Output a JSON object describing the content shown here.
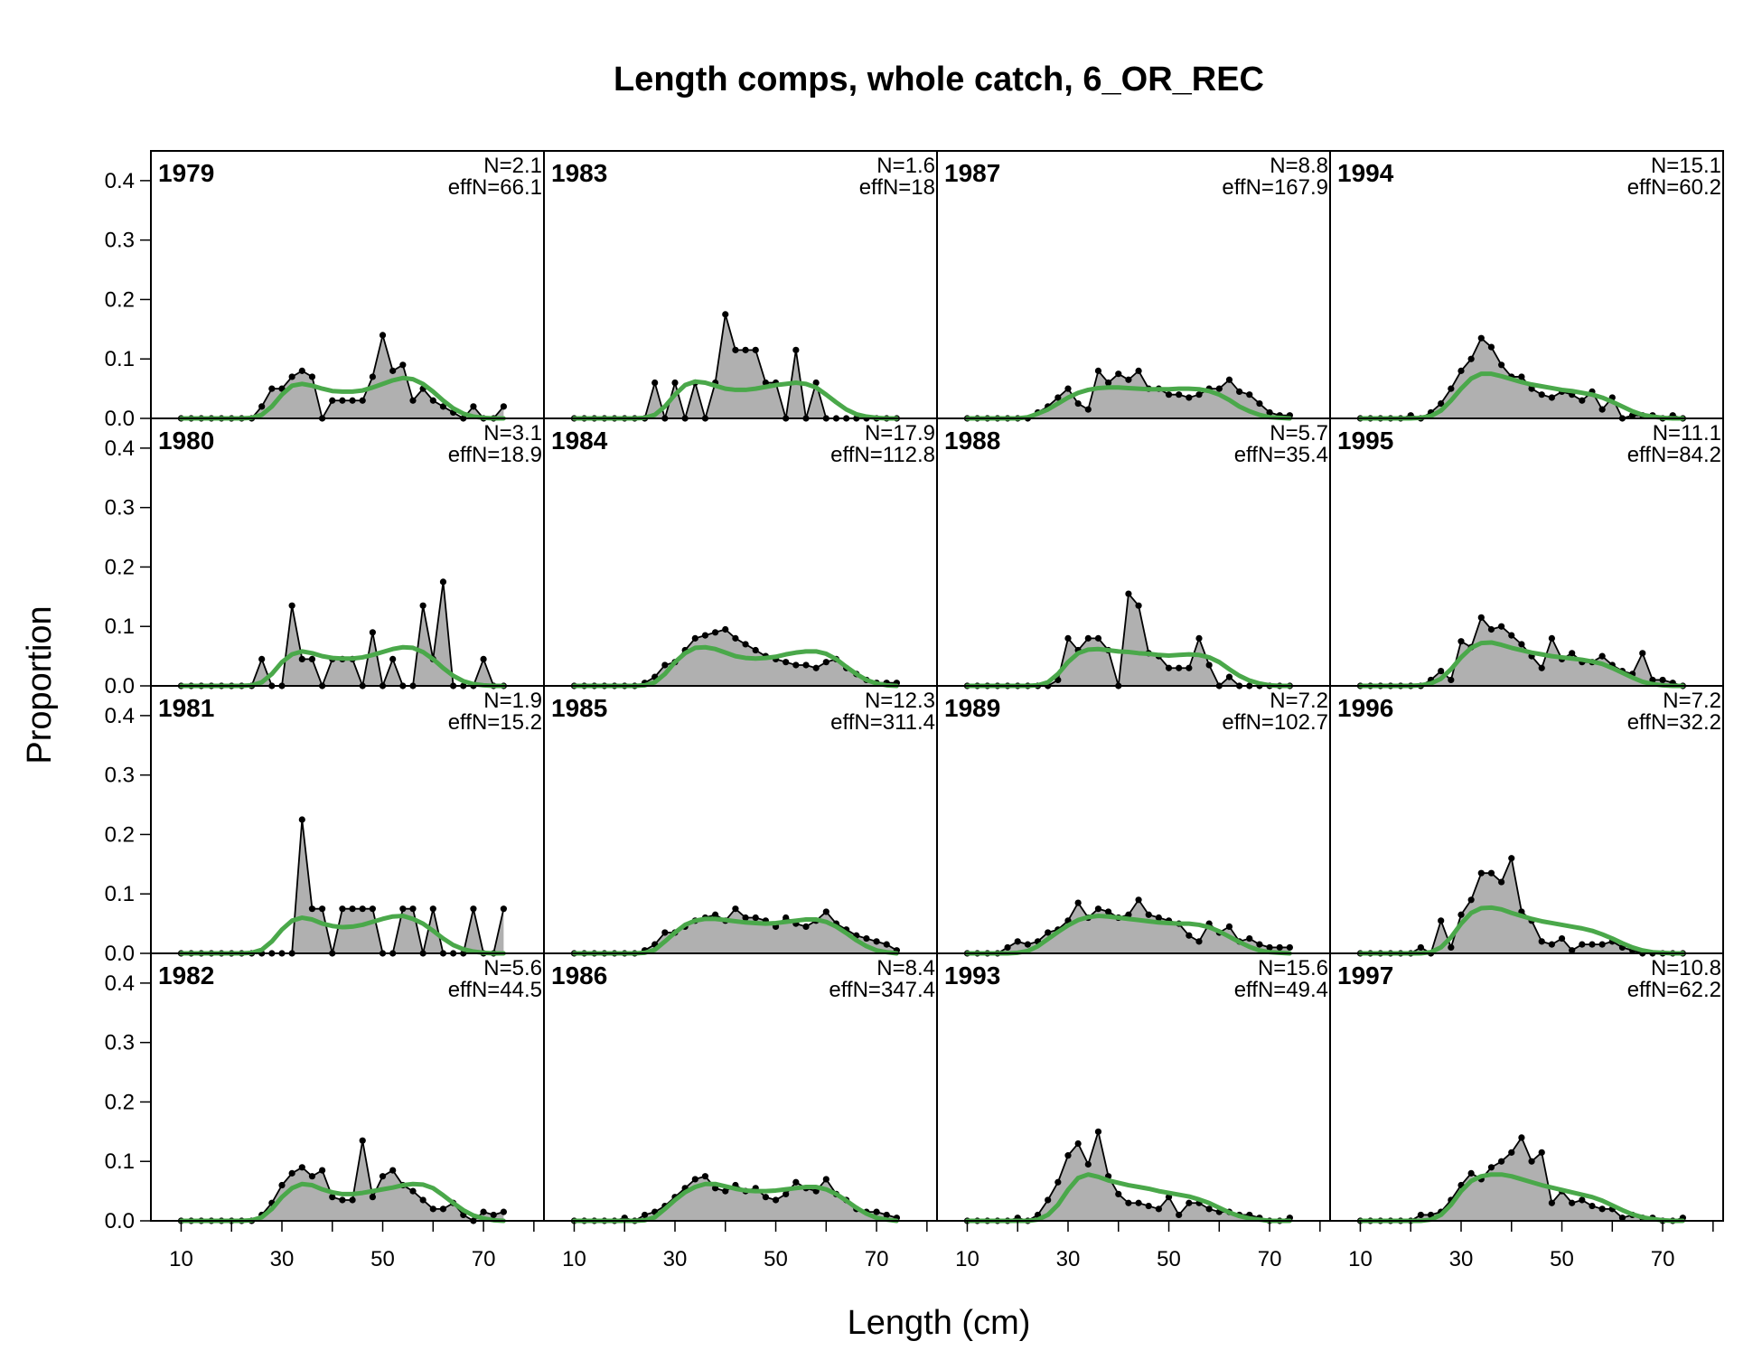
{
  "chart_data": {
    "type": "area",
    "title": "Length comps, whole catch, 6_OR_REC",
    "xlabel": "Length (cm)",
    "ylabel": "Proportion",
    "ylim": [
      0,
      0.45
    ],
    "xlim": [
      4,
      82
    ],
    "x_ticks": [
      10,
      30,
      50,
      70
    ],
    "y_ticks": [
      "0.0",
      "0.1",
      "0.2",
      "0.3",
      "0.4"
    ],
    "layout": "4x4 panel grid, column-major",
    "colors": {
      "observed_fill": "#b0b0b0",
      "observed_line": "#000000",
      "expected_line": "#4aa84a",
      "zero_line": "#c8c8c8"
    },
    "x": [
      10,
      12,
      14,
      16,
      18,
      20,
      22,
      24,
      26,
      28,
      30,
      32,
      34,
      36,
      38,
      40,
      42,
      44,
      46,
      48,
      50,
      52,
      54,
      56,
      58,
      60,
      62,
      64,
      66,
      68,
      70,
      72,
      74
    ],
    "panels": [
      {
        "year": "1979",
        "N": "N=2.1",
        "effN": "effN=66.1",
        "observed": [
          0,
          0,
          0,
          0,
          0,
          0,
          0,
          0,
          0.02,
          0.05,
          0.05,
          0.07,
          0.08,
          0.07,
          0,
          0.03,
          0.03,
          0.03,
          0.03,
          0.07,
          0.14,
          0.08,
          0.09,
          0.03,
          0.05,
          0.03,
          0.02,
          0.01,
          0,
          0.02,
          0,
          0,
          0.02
        ],
        "expected": [
          0,
          0,
          0,
          0,
          0,
          0,
          0,
          0.001,
          0.006,
          0.02,
          0.04,
          0.055,
          0.058,
          0.055,
          0.05,
          0.046,
          0.045,
          0.045,
          0.047,
          0.052,
          0.058,
          0.064,
          0.068,
          0.066,
          0.058,
          0.045,
          0.03,
          0.017,
          0.008,
          0.003,
          0.001,
          0,
          0
        ]
      },
      {
        "year": "1980",
        "N": "N=3.1",
        "effN": "effN=18.9",
        "observed": [
          0,
          0,
          0,
          0,
          0,
          0,
          0,
          0,
          0.045,
          0,
          0,
          0.135,
          0.045,
          0.045,
          0,
          0.045,
          0.045,
          0.045,
          0,
          0.09,
          0,
          0.045,
          0,
          0,
          0.135,
          0.045,
          0.175,
          0,
          0,
          0,
          0.045,
          0,
          0
        ],
        "expected": [
          0,
          0,
          0,
          0,
          0,
          0,
          0,
          0.001,
          0.006,
          0.02,
          0.04,
          0.053,
          0.058,
          0.055,
          0.05,
          0.047,
          0.046,
          0.046,
          0.048,
          0.052,
          0.057,
          0.062,
          0.065,
          0.064,
          0.057,
          0.045,
          0.03,
          0.017,
          0.008,
          0.003,
          0.001,
          0,
          0
        ]
      },
      {
        "year": "1981",
        "N": "N=1.9",
        "effN": "effN=15.2",
        "observed": [
          0,
          0,
          0,
          0,
          0,
          0,
          0,
          0,
          0,
          0,
          0,
          0,
          0.225,
          0.075,
          0.075,
          0,
          0.075,
          0.075,
          0.075,
          0.075,
          0,
          0,
          0.075,
          0.075,
          0,
          0.075,
          0,
          0,
          0,
          0.075,
          0,
          0,
          0.075
        ],
        "expected": [
          0,
          0,
          0,
          0,
          0,
          0,
          0,
          0.001,
          0.006,
          0.02,
          0.04,
          0.055,
          0.06,
          0.057,
          0.05,
          0.046,
          0.044,
          0.045,
          0.048,
          0.053,
          0.058,
          0.062,
          0.063,
          0.058,
          0.05,
          0.038,
          0.025,
          0.014,
          0.007,
          0.003,
          0.001,
          0,
          0
        ]
      },
      {
        "year": "1982",
        "N": "N=5.6",
        "effN": "effN=44.5",
        "observed": [
          0,
          0,
          0,
          0,
          0,
          0,
          0,
          0,
          0.01,
          0.03,
          0.06,
          0.08,
          0.09,
          0.075,
          0.085,
          0.04,
          0.035,
          0.035,
          0.135,
          0.04,
          0.075,
          0.085,
          0.06,
          0.05,
          0.035,
          0.02,
          0.02,
          0.03,
          0.01,
          0,
          0.015,
          0.01,
          0.015
        ],
        "expected": [
          0,
          0,
          0,
          0,
          0,
          0,
          0,
          0.001,
          0.006,
          0.02,
          0.04,
          0.055,
          0.062,
          0.06,
          0.053,
          0.048,
          0.045,
          0.045,
          0.047,
          0.05,
          0.053,
          0.056,
          0.06,
          0.062,
          0.061,
          0.055,
          0.043,
          0.03,
          0.018,
          0.009,
          0.004,
          0.001,
          0
        ]
      },
      {
        "year": "1983",
        "N": "N=1.6",
        "effN": "effN=18",
        "observed": [
          0,
          0,
          0,
          0,
          0,
          0,
          0,
          0,
          0.06,
          0,
          0.06,
          0,
          0.06,
          0,
          0.06,
          0.175,
          0.115,
          0.115,
          0.115,
          0.06,
          0.06,
          0,
          0.115,
          0,
          0.06,
          0,
          0,
          0,
          0,
          0,
          0,
          0,
          0
        ],
        "expected": [
          0,
          0,
          0,
          0,
          0,
          0,
          0,
          0.001,
          0.006,
          0.02,
          0.04,
          0.056,
          0.062,
          0.06,
          0.055,
          0.05,
          0.048,
          0.048,
          0.05,
          0.053,
          0.056,
          0.058,
          0.06,
          0.058,
          0.052,
          0.04,
          0.027,
          0.015,
          0.007,
          0.003,
          0.001,
          0,
          0
        ]
      },
      {
        "year": "1984",
        "N": "N=17.9",
        "effN": "effN=112.8",
        "observed": [
          0,
          0,
          0,
          0,
          0,
          0,
          0,
          0.005,
          0.015,
          0.035,
          0.04,
          0.06,
          0.08,
          0.085,
          0.09,
          0.095,
          0.08,
          0.07,
          0.06,
          0.05,
          0.045,
          0.04,
          0.035,
          0.035,
          0.03,
          0.04,
          0.045,
          0.03,
          0.02,
          0.01,
          0.005,
          0.005,
          0.005
        ],
        "expected": [
          0,
          0,
          0,
          0,
          0,
          0,
          0,
          0.001,
          0.006,
          0.02,
          0.04,
          0.055,
          0.064,
          0.065,
          0.062,
          0.056,
          0.05,
          0.047,
          0.046,
          0.047,
          0.049,
          0.053,
          0.056,
          0.058,
          0.058,
          0.054,
          0.045,
          0.032,
          0.02,
          0.01,
          0.004,
          0.001,
          0
        ]
      },
      {
        "year": "1985",
        "N": "N=12.3",
        "effN": "effN=311.4",
        "observed": [
          0,
          0,
          0,
          0,
          0,
          0,
          0,
          0.005,
          0.015,
          0.035,
          0.035,
          0.045,
          0.055,
          0.06,
          0.065,
          0.055,
          0.075,
          0.06,
          0.06,
          0.055,
          0.045,
          0.06,
          0.05,
          0.045,
          0.055,
          0.07,
          0.05,
          0.04,
          0.03,
          0.025,
          0.02,
          0.015,
          0.005
        ],
        "expected": [
          0,
          0,
          0,
          0,
          0,
          0,
          0,
          0.001,
          0.006,
          0.02,
          0.035,
          0.048,
          0.055,
          0.058,
          0.058,
          0.056,
          0.054,
          0.052,
          0.051,
          0.05,
          0.051,
          0.053,
          0.055,
          0.057,
          0.057,
          0.053,
          0.045,
          0.034,
          0.022,
          0.012,
          0.005,
          0.002,
          0
        ]
      },
      {
        "year": "1986",
        "N": "N=8.4",
        "effN": "effN=347.4",
        "observed": [
          0,
          0,
          0,
          0,
          0,
          0.005,
          0,
          0.01,
          0.015,
          0.025,
          0.04,
          0.055,
          0.07,
          0.075,
          0.055,
          0.05,
          0.06,
          0.05,
          0.055,
          0.04,
          0.035,
          0.045,
          0.065,
          0.055,
          0.05,
          0.07,
          0.045,
          0.035,
          0.02,
          0.015,
          0.015,
          0.01,
          0.005
        ],
        "expected": [
          0,
          0,
          0,
          0,
          0,
          0,
          0,
          0.001,
          0.006,
          0.02,
          0.035,
          0.048,
          0.057,
          0.062,
          0.062,
          0.058,
          0.054,
          0.051,
          0.05,
          0.05,
          0.051,
          0.053,
          0.055,
          0.057,
          0.057,
          0.053,
          0.045,
          0.034,
          0.022,
          0.012,
          0.005,
          0.002,
          0
        ]
      },
      {
        "year": "1987",
        "N": "N=8.8",
        "effN": "effN=167.9",
        "observed": [
          0,
          0,
          0,
          0,
          0,
          0,
          0,
          0.01,
          0.02,
          0.035,
          0.05,
          0.025,
          0.015,
          0.08,
          0.06,
          0.075,
          0.065,
          0.08,
          0.05,
          0.05,
          0.04,
          0.04,
          0.035,
          0.04,
          0.05,
          0.05,
          0.065,
          0.045,
          0.04,
          0.025,
          0.01,
          0.005,
          0.005
        ],
        "expected": [
          0,
          0,
          0,
          0,
          0,
          0,
          0.002,
          0.008,
          0.015,
          0.025,
          0.035,
          0.043,
          0.048,
          0.051,
          0.052,
          0.052,
          0.051,
          0.05,
          0.049,
          0.049,
          0.049,
          0.05,
          0.05,
          0.049,
          0.046,
          0.04,
          0.031,
          0.02,
          0.012,
          0.006,
          0.002,
          0.001,
          0
        ]
      },
      {
        "year": "1988",
        "N": "N=5.7",
        "effN": "effN=35.4",
        "observed": [
          0,
          0,
          0,
          0,
          0,
          0,
          0,
          0,
          0,
          0.01,
          0.08,
          0.06,
          0.08,
          0.08,
          0.06,
          0,
          0.155,
          0.135,
          0.055,
          0.05,
          0.03,
          0.03,
          0.03,
          0.08,
          0.035,
          0,
          0.015,
          0,
          0,
          0,
          0,
          0,
          0
        ],
        "expected": [
          0,
          0,
          0,
          0,
          0,
          0,
          0,
          0.001,
          0.006,
          0.02,
          0.04,
          0.055,
          0.061,
          0.062,
          0.06,
          0.058,
          0.057,
          0.055,
          0.054,
          0.052,
          0.051,
          0.052,
          0.053,
          0.052,
          0.048,
          0.04,
          0.028,
          0.017,
          0.009,
          0.004,
          0.001,
          0,
          0
        ]
      },
      {
        "year": "1989",
        "N": "N=7.2",
        "effN": "effN=102.7",
        "observed": [
          0,
          0,
          0,
          0,
          0.01,
          0.02,
          0.015,
          0.02,
          0.035,
          0.04,
          0.055,
          0.085,
          0.06,
          0.075,
          0.07,
          0.06,
          0.065,
          0.09,
          0.065,
          0.06,
          0.055,
          0.05,
          0.03,
          0.02,
          0.05,
          0.035,
          0.045,
          0.02,
          0.025,
          0.015,
          0.01,
          0.01,
          0.01
        ],
        "expected": [
          0,
          0,
          0,
          0,
          0,
          0.001,
          0.004,
          0.012,
          0.024,
          0.036,
          0.047,
          0.056,
          0.061,
          0.063,
          0.062,
          0.06,
          0.058,
          0.056,
          0.054,
          0.052,
          0.051,
          0.05,
          0.05,
          0.048,
          0.044,
          0.037,
          0.028,
          0.019,
          0.011,
          0.005,
          0.002,
          0.001,
          0
        ]
      },
      {
        "year": "1993",
        "N": "N=15.6",
        "effN": "effN=49.4",
        "observed": [
          0,
          0,
          0,
          0,
          0,
          0.005,
          0,
          0.01,
          0.035,
          0.065,
          0.11,
          0.13,
          0.095,
          0.15,
          0.075,
          0.045,
          0.03,
          0.03,
          0.025,
          0.02,
          0.04,
          0.01,
          0.03,
          0.03,
          0.02,
          0.015,
          0.015,
          0.01,
          0.01,
          0.005,
          0,
          0,
          0.005
        ],
        "expected": [
          0,
          0,
          0,
          0,
          0,
          0,
          0,
          0.002,
          0.01,
          0.027,
          0.052,
          0.072,
          0.078,
          0.074,
          0.068,
          0.064,
          0.06,
          0.057,
          0.054,
          0.05,
          0.047,
          0.044,
          0.041,
          0.036,
          0.03,
          0.022,
          0.014,
          0.008,
          0.004,
          0.002,
          0,
          0,
          0
        ]
      },
      {
        "year": "1994",
        "N": "N=15.1",
        "effN": "effN=60.2",
        "observed": [
          0,
          0,
          0,
          0,
          0,
          0.005,
          0,
          0.01,
          0.025,
          0.05,
          0.08,
          0.1,
          0.135,
          0.12,
          0.09,
          0.07,
          0.07,
          0.05,
          0.04,
          0.035,
          0.045,
          0.04,
          0.03,
          0.045,
          0.015,
          0.035,
          0,
          0.005,
          0.005,
          0.005,
          0,
          0.005,
          0
        ],
        "expected": [
          0,
          0,
          0,
          0,
          0,
          0,
          0.001,
          0.004,
          0.013,
          0.03,
          0.05,
          0.067,
          0.075,
          0.075,
          0.071,
          0.066,
          0.061,
          0.057,
          0.054,
          0.051,
          0.048,
          0.046,
          0.043,
          0.04,
          0.035,
          0.028,
          0.02,
          0.012,
          0.006,
          0.003,
          0.001,
          0,
          0
        ]
      },
      {
        "year": "1995",
        "N": "N=11.1",
        "effN": "effN=84.2",
        "observed": [
          0,
          0,
          0,
          0,
          0,
          0,
          0,
          0.01,
          0.025,
          0.01,
          0.075,
          0.065,
          0.115,
          0.095,
          0.1,
          0.085,
          0.07,
          0.05,
          0.03,
          0.08,
          0.045,
          0.055,
          0.04,
          0.04,
          0.05,
          0.035,
          0.025,
          0.02,
          0.055,
          0.01,
          0.01,
          0.005,
          0
        ],
        "expected": [
          0,
          0,
          0,
          0,
          0,
          0,
          0.001,
          0.004,
          0.012,
          0.028,
          0.048,
          0.064,
          0.072,
          0.073,
          0.069,
          0.064,
          0.06,
          0.056,
          0.053,
          0.05,
          0.048,
          0.046,
          0.044,
          0.041,
          0.037,
          0.03,
          0.022,
          0.014,
          0.007,
          0.003,
          0.001,
          0,
          0
        ]
      },
      {
        "year": "1996",
        "N": "N=7.2",
        "effN": "effN=32.2",
        "observed": [
          0,
          0,
          0,
          0,
          0,
          0,
          0.01,
          0,
          0.055,
          0.01,
          0.065,
          0.09,
          0.135,
          0.135,
          0.12,
          0.16,
          0.07,
          0.055,
          0.02,
          0.015,
          0.025,
          0.005,
          0.015,
          0.015,
          0.015,
          0.02,
          0.01,
          0.005,
          0,
          0,
          0,
          0,
          0
        ],
        "expected": [
          0,
          0,
          0,
          0,
          0,
          0,
          0,
          0.002,
          0.01,
          0.027,
          0.05,
          0.068,
          0.076,
          0.077,
          0.074,
          0.068,
          0.063,
          0.058,
          0.054,
          0.051,
          0.048,
          0.045,
          0.042,
          0.038,
          0.032,
          0.025,
          0.017,
          0.01,
          0.005,
          0.002,
          0.001,
          0,
          0
        ]
      },
      {
        "year": "1997",
        "N": "N=10.8",
        "effN": "effN=62.2",
        "observed": [
          0,
          0,
          0,
          0,
          0,
          0,
          0.01,
          0.01,
          0.015,
          0.035,
          0.06,
          0.08,
          0.07,
          0.09,
          0.1,
          0.115,
          0.14,
          0.1,
          0.115,
          0.03,
          0.05,
          0.03,
          0.035,
          0.025,
          0.02,
          0.02,
          0.005,
          0.01,
          0.005,
          0.005,
          0,
          0,
          0.005
        ],
        "expected": [
          0,
          0,
          0,
          0,
          0,
          0,
          0,
          0.002,
          0.01,
          0.027,
          0.05,
          0.067,
          0.075,
          0.078,
          0.078,
          0.075,
          0.07,
          0.065,
          0.06,
          0.056,
          0.052,
          0.048,
          0.044,
          0.04,
          0.034,
          0.026,
          0.018,
          0.011,
          0.006,
          0.003,
          0.001,
          0,
          0
        ]
      }
    ]
  }
}
